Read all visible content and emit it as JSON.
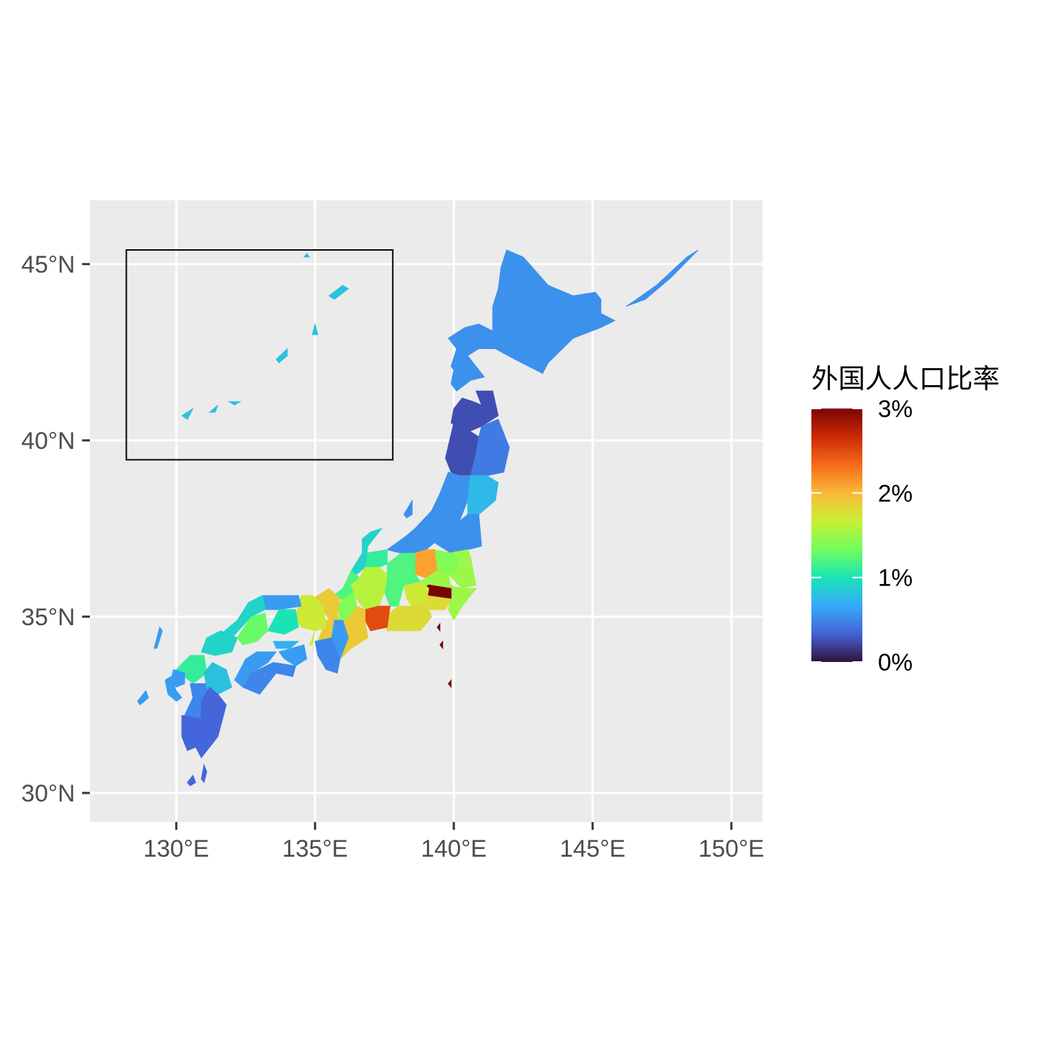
{
  "chart_data": {
    "type": "choropleth",
    "x_axis": {
      "ticks": [
        "130°E",
        "135°E",
        "140°E",
        "145°E",
        "150°E"
      ],
      "tick_values": [
        130,
        135,
        140,
        145,
        150
      ],
      "range": [
        127,
        151
      ]
    },
    "y_axis": {
      "ticks": [
        "30°N",
        "35°N",
        "40°N",
        "45°N"
      ],
      "tick_values": [
        30,
        35,
        40,
        45
      ],
      "range": [
        29.2,
        46.8
      ]
    },
    "grid": true,
    "legend": {
      "title": "外国人人口比率",
      "position": "right",
      "labels": [
        "3%",
        "2%",
        "1%",
        "0%"
      ],
      "label_values": [
        3,
        2,
        1,
        0
      ],
      "range": [
        0,
        3
      ],
      "colors": [
        "#30123b",
        "#4662d8",
        "#36aaf9",
        "#1ae4b6",
        "#72fe5e",
        "#c8ef34",
        "#faba39",
        "#f66b19",
        "#ca2a04",
        "#7a0403"
      ]
    },
    "inset_box": {
      "lon": [
        128.2,
        137.8
      ],
      "lat": [
        39.45,
        45.4
      ]
    },
    "regions": [
      {
        "name": "hokkaido",
        "value": 0.55
      },
      {
        "name": "aomori",
        "value": 0.25
      },
      {
        "name": "iwate",
        "value": 0.45
      },
      {
        "name": "akita",
        "value": 0.25
      },
      {
        "name": "miyagi",
        "value": 0.75
      },
      {
        "name": "yamagata",
        "value": 0.55
      },
      {
        "name": "fukushima",
        "value": 0.55
      },
      {
        "name": "niigata",
        "value": 0.55
      },
      {
        "name": "ibaraki",
        "value": 1.5
      },
      {
        "name": "tochigi",
        "value": 1.4
      },
      {
        "name": "gunma",
        "value": 2.1
      },
      {
        "name": "saitama",
        "value": 1.5
      },
      {
        "name": "chiba",
        "value": 1.5
      },
      {
        "name": "tokyo",
        "value": 3.0
      },
      {
        "name": "kanagawa",
        "value": 1.8
      },
      {
        "name": "yamanashi",
        "value": 1.7
      },
      {
        "name": "nagano",
        "value": 1.2
      },
      {
        "name": "toyama",
        "value": 1.1
      },
      {
        "name": "ishikawa",
        "value": 0.9
      },
      {
        "name": "fukui",
        "value": 1.2
      },
      {
        "name": "gifu",
        "value": 1.6
      },
      {
        "name": "shizuoka",
        "value": 1.8
      },
      {
        "name": "aichi",
        "value": 2.5
      },
      {
        "name": "mie",
        "value": 1.9
      },
      {
        "name": "shiga",
        "value": 1.4
      },
      {
        "name": "kyoto",
        "value": 1.9
      },
      {
        "name": "osaka",
        "value": 1.9
      },
      {
        "name": "hyogo",
        "value": 1.7
      },
      {
        "name": "nara",
        "value": 0.6
      },
      {
        "name": "wakayama",
        "value": 0.5
      },
      {
        "name": "tottori",
        "value": 0.6
      },
      {
        "name": "shimane",
        "value": 0.9
      },
      {
        "name": "okayama",
        "value": 1.0
      },
      {
        "name": "hiroshima",
        "value": 1.3
      },
      {
        "name": "yamaguchi",
        "value": 0.9
      },
      {
        "name": "tokushima",
        "value": 0.6
      },
      {
        "name": "kagawa",
        "value": 0.7
      },
      {
        "name": "ehime",
        "value": 0.6
      },
      {
        "name": "kochi",
        "value": 0.5
      },
      {
        "name": "fukuoka",
        "value": 1.1
      },
      {
        "name": "saga",
        "value": 0.6
      },
      {
        "name": "nagasaki",
        "value": 0.6
      },
      {
        "name": "kumamoto",
        "value": 0.5
      },
      {
        "name": "oita",
        "value": 0.8
      },
      {
        "name": "miyazaki",
        "value": 0.35
      },
      {
        "name": "kagoshima",
        "value": 0.35
      },
      {
        "name": "okinawa",
        "value": 0.8
      }
    ]
  }
}
